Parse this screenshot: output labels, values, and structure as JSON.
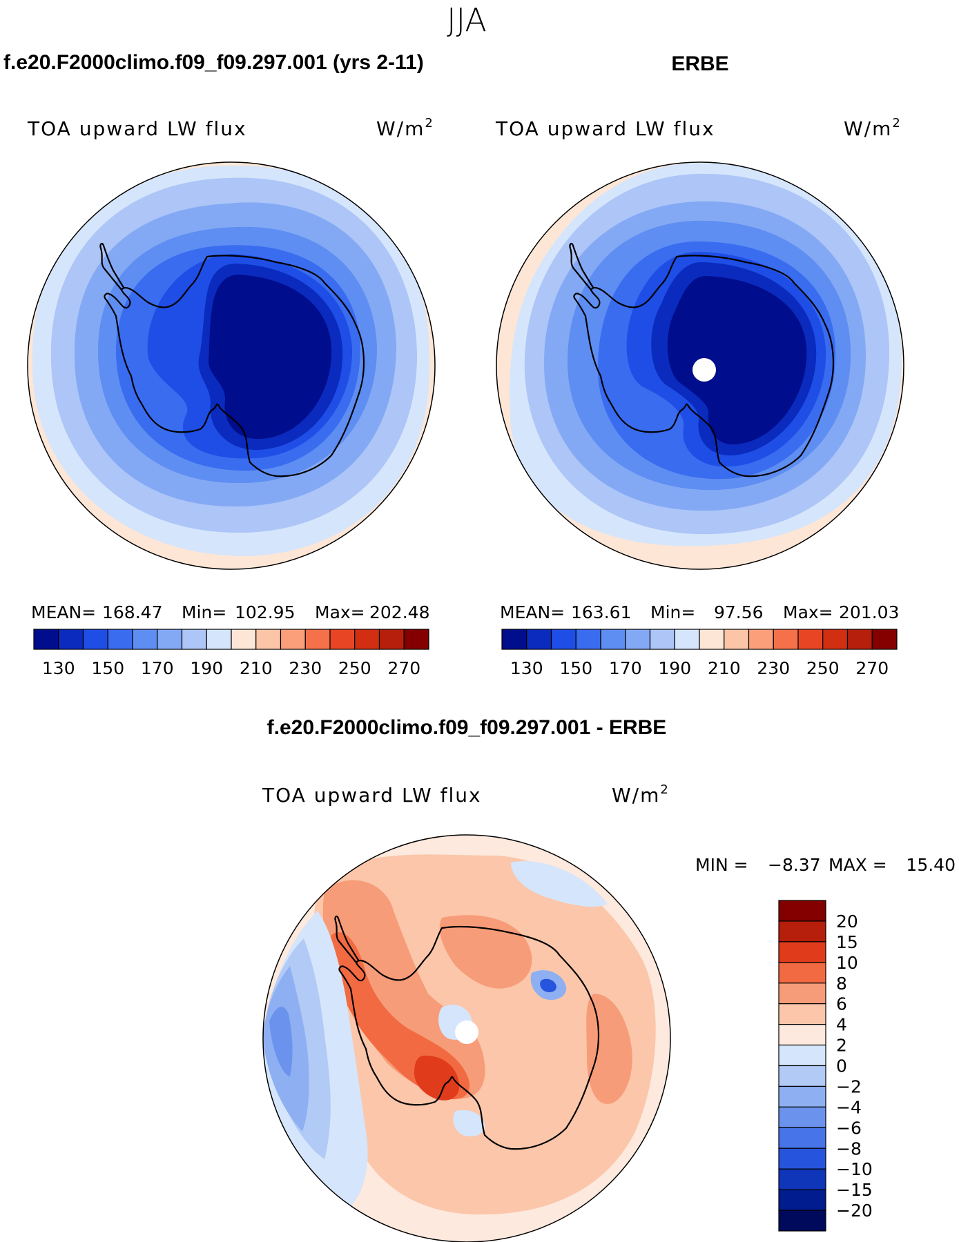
{
  "figure": {
    "season": "JJA",
    "panel_left_title": "f.e20.F2000climo.f09_f09.297.001 (yrs 2-11)",
    "panel_right_title": "ERBE",
    "diff_title": "f.e20.F2000climo.f09_f09.297.001 - ERBE"
  },
  "chart_data": [
    {
      "type": "heatmap",
      "projection": "south-polar-stereographic",
      "title": "TOA upward LW flux",
      "units": "W/m",
      "units_sup": "2",
      "stats": {
        "mean_label": "MEAN=",
        "mean": "168.47",
        "min_label": "Min=",
        "min": "102.95",
        "max_label": "Max=",
        "max": "202.48"
      },
      "colorbar_ticks": [
        "130",
        "150",
        "170",
        "190",
        "210",
        "230",
        "250",
        "270"
      ],
      "colorbar_levels": [
        120,
        130,
        140,
        150,
        160,
        170,
        180,
        190,
        200,
        210,
        220,
        230,
        240,
        250,
        260,
        270,
        280
      ],
      "colorbar_colors": [
        "#000d8c",
        "#0a2bbd",
        "#1e4ee6",
        "#3a6cf0",
        "#5e8ef2",
        "#84a9f4",
        "#adc5f7",
        "#d5e5fb",
        "#fde6d6",
        "#fcc5a8",
        "#fa9f7a",
        "#f4714a",
        "#e84525",
        "#d22e11",
        "#b51f0b",
        "#840000"
      ]
    },
    {
      "type": "heatmap",
      "projection": "south-polar-stereographic",
      "title": "TOA upward LW flux",
      "units": "W/m",
      "units_sup": "2",
      "stats": {
        "mean_label": "MEAN=",
        "mean": "163.61",
        "min_label": "Min=",
        "min": "97.56",
        "max_label": "Max=",
        "max": "201.03"
      },
      "colorbar_ticks": [
        "130",
        "150",
        "170",
        "190",
        "210",
        "230",
        "250",
        "270"
      ],
      "colorbar_levels": [
        120,
        130,
        140,
        150,
        160,
        170,
        180,
        190,
        200,
        210,
        220,
        230,
        240,
        250,
        260,
        270,
        280
      ],
      "colorbar_colors": [
        "#000d8c",
        "#0a2bbd",
        "#1e4ee6",
        "#3a6cf0",
        "#5e8ef2",
        "#84a9f4",
        "#adc5f7",
        "#d5e5fb",
        "#fde6d6",
        "#fcc5a8",
        "#fa9f7a",
        "#f4714a",
        "#e84525",
        "#d22e11",
        "#b51f0b",
        "#840000"
      ]
    },
    {
      "type": "heatmap",
      "projection": "south-polar-stereographic",
      "title": "TOA upward LW flux",
      "units": "W/m",
      "units_sup": "2",
      "stats": {
        "min_label": "MIN =",
        "min": "−8.37",
        "max_label": "MAX =",
        "max": "15.40"
      },
      "colorbar_ticks": [
        "20",
        "15",
        "10",
        "8",
        "6",
        "4",
        "2",
        "0",
        "−2",
        "−4",
        "−6",
        "−8",
        "−10",
        "−15",
        "−20"
      ],
      "colorbar_colors": [
        "#840000",
        "#b51f0b",
        "#e03c1c",
        "#f26a41",
        "#f79c78",
        "#fbc6aa",
        "#fde9dd",
        "#d5e5fb",
        "#b1caf6",
        "#8eaff2",
        "#6b93ee",
        "#4774e8",
        "#2754dc",
        "#0f35b8",
        "#001c8e",
        "#000a5c"
      ]
    }
  ]
}
